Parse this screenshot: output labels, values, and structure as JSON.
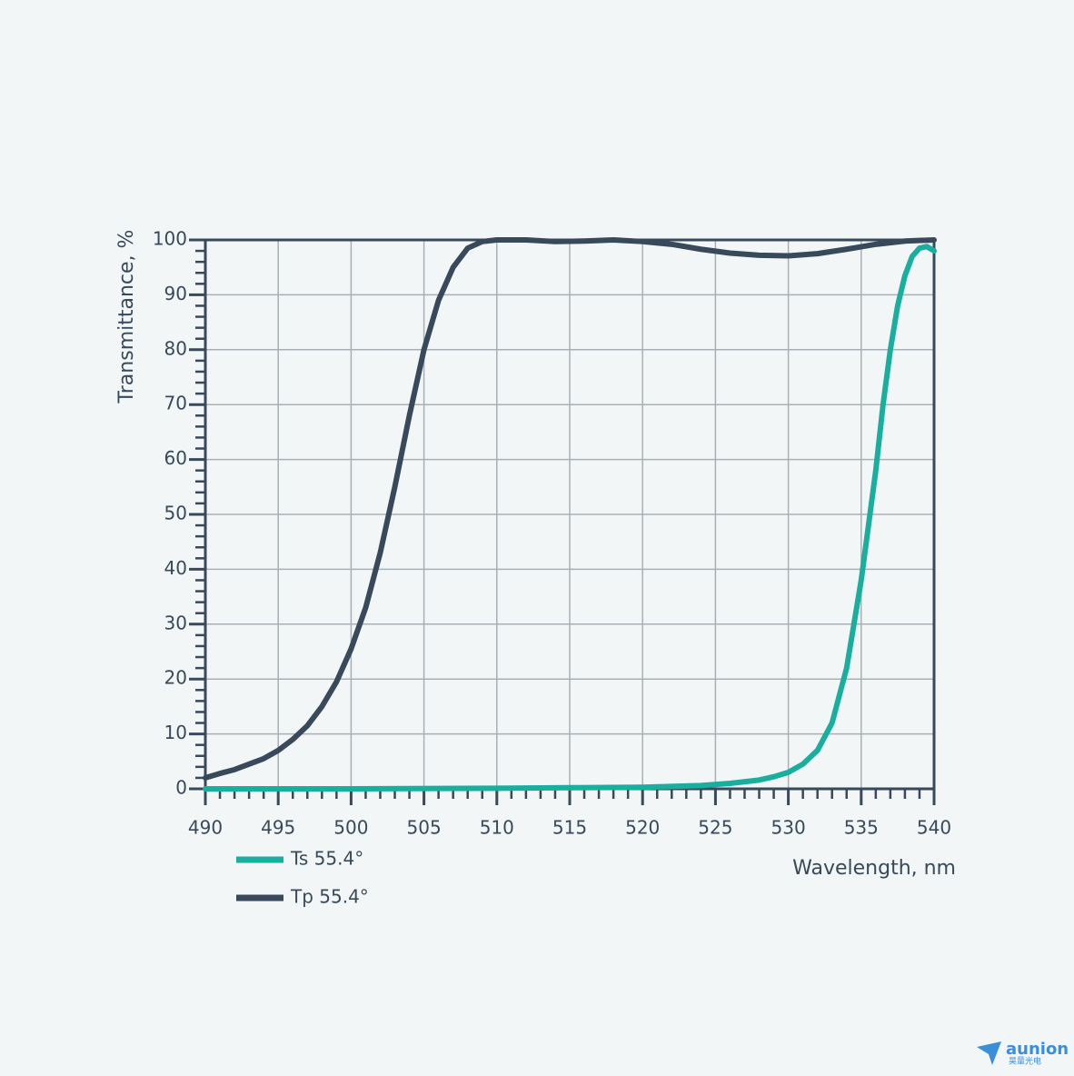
{
  "chart_data": {
    "type": "line",
    "xlabel": "Wavelength, nm",
    "ylabel": "Transmittance, %",
    "xlim": [
      490,
      540
    ],
    "xticks": [
      490,
      495,
      500,
      505,
      510,
      515,
      520,
      525,
      530,
      535,
      540
    ],
    "ylim": [
      0,
      100
    ],
    "yticks": [
      0,
      10,
      20,
      30,
      40,
      50,
      60,
      70,
      80,
      90,
      100
    ],
    "grid": true,
    "legend": "bottom-left",
    "series": [
      {
        "name": "Ts 55.4°",
        "color": "#1aae9f",
        "x": [
          490,
          500,
          510,
          515,
          520,
          524,
          526,
          528,
          529,
          530,
          531,
          532,
          533,
          534,
          535,
          535.5,
          536,
          536.5,
          537,
          537.5,
          538,
          538.5,
          539,
          539.5,
          540
        ],
        "values": [
          0,
          0,
          0.1,
          0.2,
          0.3,
          0.6,
          1,
          1.6,
          2.2,
          3,
          4.5,
          7,
          12,
          22,
          38,
          48,
          58,
          70,
          80,
          88,
          93.5,
          97,
          98.5,
          98.8,
          98
        ]
      },
      {
        "name": "Tp 55.4°",
        "color": "#37495a",
        "x": [
          490,
          491,
          492,
          493,
          494,
          495,
          496,
          497,
          498,
          499,
          500,
          501,
          502,
          503,
          504,
          505,
          506,
          507,
          508,
          509,
          510,
          512,
          514,
          516,
          518,
          520,
          522,
          524,
          526,
          528,
          530,
          532,
          534,
          536,
          538,
          540
        ],
        "values": [
          2,
          2.8,
          3.5,
          4.5,
          5.5,
          7,
          9,
          11.5,
          15,
          19.5,
          25.5,
          33,
          43,
          55,
          68,
          80,
          89,
          95,
          98.5,
          99.7,
          100,
          100,
          99.7,
          99.8,
          100,
          99.7,
          99.2,
          98.3,
          97.6,
          97.2,
          97.1,
          97.5,
          98.3,
          99.2,
          99.8,
          100
        ]
      }
    ]
  },
  "logo": {
    "name": "aunion",
    "subtitle": "昊量光电"
  }
}
